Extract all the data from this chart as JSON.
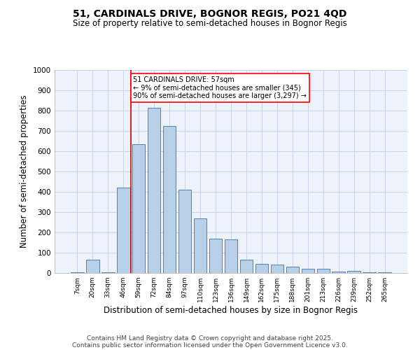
{
  "title_line1": "51, CARDINALS DRIVE, BOGNOR REGIS, PO21 4QD",
  "title_line2": "Size of property relative to semi-detached houses in Bognor Regis",
  "xlabel": "Distribution of semi-detached houses by size in Bognor Regis",
  "ylabel": "Number of semi-detached properties",
  "categories": [
    "7sqm",
    "20sqm",
    "33sqm",
    "46sqm",
    "59sqm",
    "72sqm",
    "84sqm",
    "97sqm",
    "110sqm",
    "123sqm",
    "136sqm",
    "149sqm",
    "162sqm",
    "175sqm",
    "188sqm",
    "201sqm",
    "213sqm",
    "226sqm",
    "239sqm",
    "252sqm",
    "265sqm"
  ],
  "values": [
    5,
    65,
    5,
    420,
    635,
    815,
    725,
    410,
    270,
    170,
    165,
    65,
    45,
    42,
    30,
    20,
    20,
    8,
    10,
    5,
    5
  ],
  "bar_color": "#b8cfe8",
  "bar_edge_color": "#5080b8",
  "vline_color": "#cc0000",
  "vline_x_index": 4,
  "annotation_text": "51 CARDINALS DRIVE: 57sqm\n← 9% of semi-detached houses are smaller (345)\n90% of semi-detached houses are larger (3,297) →",
  "ylim": [
    0,
    1000
  ],
  "yticks": [
    0,
    100,
    200,
    300,
    400,
    500,
    600,
    700,
    800,
    900,
    1000
  ],
  "grid_color": "#c8d4e8",
  "background_color": "#edf2fb",
  "footer_line1": "Contains HM Land Registry data © Crown copyright and database right 2025.",
  "footer_line2": "Contains public sector information licensed under the Open Government Licence v3.0."
}
